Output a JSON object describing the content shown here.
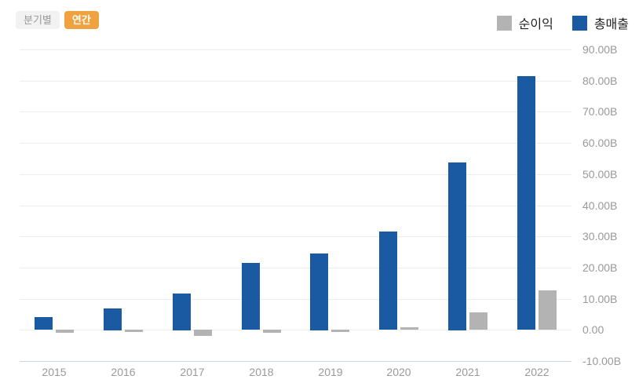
{
  "controls": {
    "quarterly_label": "분기별",
    "annual_label": "연간"
  },
  "legend": {
    "items": [
      {
        "label": "순이익",
        "color": "#b3b3b3"
      },
      {
        "label": "총매출",
        "color": "#1a5aa3"
      }
    ]
  },
  "chart_data": {
    "type": "bar",
    "title": "",
    "categories": [
      "2015",
      "2016",
      "2017",
      "2018",
      "2019",
      "2020",
      "2021",
      "2022"
    ],
    "series": [
      {
        "name": "총매출",
        "color": "#1a5aa3",
        "values": [
          4.05,
          7.0,
          11.76,
          21.46,
          24.58,
          31.54,
          53.82,
          81.46
        ]
      },
      {
        "name": "순이익",
        "color": "#b3b3b3",
        "values": [
          -0.89,
          -0.67,
          -1.96,
          -0.98,
          -0.86,
          0.72,
          5.52,
          12.56
        ]
      }
    ],
    "unit": "B",
    "ylim": [
      -10,
      90
    ],
    "ytick_step": 10,
    "ytick_labels": [
      "90.00B",
      "80.00B",
      "70.00B",
      "60.00B",
      "50.00B",
      "40.00B",
      "30.00B",
      "20.00B",
      "10.00B",
      "0.00",
      "-10.00B"
    ],
    "ytick_values": [
      90,
      80,
      70,
      60,
      50,
      40,
      30,
      20,
      10,
      0,
      -10
    ],
    "yaxis_side": "right",
    "legend_position": "top-right",
    "grid": true,
    "colors": {
      "grid": "#ededed",
      "axis_line": "#ccd6eb",
      "tick_label": "#999999"
    }
  }
}
